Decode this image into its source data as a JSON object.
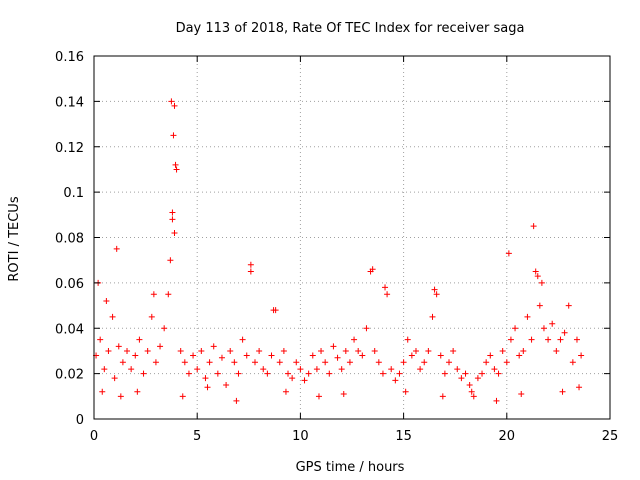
{
  "chart_data": {
    "type": "scatter",
    "title": "Day 113 of 2018, Rate Of TEC Index for receiver saga",
    "xlabel": "GPS time / hours",
    "ylabel": "ROTI / TECUs",
    "xlim": [
      0,
      25
    ],
    "ylim": [
      0,
      0.16
    ],
    "xticks": [
      "0",
      "5",
      "10",
      "15",
      "20",
      "25"
    ],
    "yticks": [
      "0",
      "0.02",
      "0.04",
      "0.06",
      "0.08",
      "0.1",
      "0.12",
      "0.14",
      "0.16"
    ],
    "grid": true,
    "marker": "+",
    "series": [
      {
        "name": "ROTI",
        "color": "#ff0000",
        "x": [
          0.1,
          0.3,
          0.5,
          0.7,
          0.9,
          1.0,
          1.2,
          1.4,
          1.6,
          1.8,
          2.0,
          2.2,
          2.4,
          2.6,
          2.8,
          3.0,
          3.2,
          3.4,
          3.6,
          3.7,
          3.8,
          3.9,
          4.0,
          4.2,
          4.4,
          4.6,
          4.8,
          5.0,
          5.2,
          5.4,
          5.6,
          5.8,
          6.0,
          6.2,
          6.4,
          6.6,
          6.8,
          7.0,
          7.2,
          7.4,
          7.6,
          7.8,
          8.0,
          8.2,
          8.4,
          8.6,
          8.8,
          9.0,
          9.2,
          9.4,
          9.6,
          9.8,
          10.0,
          10.2,
          10.4,
          10.6,
          10.8,
          11.0,
          11.2,
          11.4,
          11.6,
          11.8,
          12.0,
          12.2,
          12.4,
          12.6,
          12.8,
          13.0,
          13.2,
          13.4,
          13.6,
          13.8,
          14.0,
          14.2,
          14.4,
          14.6,
          14.8,
          15.0,
          15.2,
          15.4,
          15.6,
          15.8,
          16.0,
          16.2,
          16.4,
          16.6,
          16.8,
          17.0,
          17.2,
          17.4,
          17.6,
          17.8,
          18.0,
          18.2,
          18.4,
          18.6,
          18.8,
          19.0,
          19.2,
          19.4,
          19.6,
          19.8,
          20.0,
          20.2,
          20.4,
          20.6,
          20.8,
          21.0,
          21.2,
          21.4,
          21.6,
          21.8,
          22.0,
          22.2,
          22.4,
          22.6,
          22.8,
          23.0,
          23.2,
          23.4,
          23.6,
          0.2,
          0.6,
          1.1,
          2.9,
          3.75,
          3.85,
          3.95,
          3.8,
          3.9,
          7.6,
          8.7,
          13.5,
          14.1,
          16.5,
          20.1,
          21.3,
          21.5,
          21.7,
          0.4,
          1.3,
          2.1,
          4.3,
          5.5,
          6.9,
          9.3,
          10.9,
          12.1,
          15.1,
          16.9,
          18.3,
          19.5,
          20.7,
          22.7,
          23.5
        ],
        "y": [
          0.028,
          0.035,
          0.022,
          0.03,
          0.045,
          0.018,
          0.032,
          0.025,
          0.03,
          0.022,
          0.028,
          0.035,
          0.02,
          0.03,
          0.045,
          0.025,
          0.032,
          0.04,
          0.055,
          0.07,
          0.088,
          0.138,
          0.11,
          0.03,
          0.025,
          0.02,
          0.028,
          0.022,
          0.03,
          0.018,
          0.025,
          0.032,
          0.02,
          0.027,
          0.015,
          0.03,
          0.025,
          0.02,
          0.035,
          0.028,
          0.065,
          0.025,
          0.03,
          0.022,
          0.02,
          0.028,
          0.048,
          0.025,
          0.03,
          0.02,
          0.018,
          0.025,
          0.022,
          0.017,
          0.02,
          0.028,
          0.022,
          0.03,
          0.025,
          0.02,
          0.032,
          0.027,
          0.022,
          0.03,
          0.025,
          0.035,
          0.03,
          0.028,
          0.04,
          0.065,
          0.03,
          0.025,
          0.02,
          0.055,
          0.022,
          0.017,
          0.02,
          0.025,
          0.035,
          0.028,
          0.03,
          0.022,
          0.025,
          0.03,
          0.045,
          0.055,
          0.028,
          0.02,
          0.025,
          0.03,
          0.022,
          0.018,
          0.02,
          0.015,
          0.01,
          0.018,
          0.02,
          0.025,
          0.028,
          0.022,
          0.02,
          0.03,
          0.025,
          0.035,
          0.04,
          0.028,
          0.03,
          0.045,
          0.035,
          0.065,
          0.05,
          0.04,
          0.035,
          0.042,
          0.03,
          0.035,
          0.038,
          0.05,
          0.025,
          0.035,
          0.028,
          0.06,
          0.052,
          0.075,
          0.055,
          0.14,
          0.125,
          0.112,
          0.091,
          0.082,
          0.068,
          0.048,
          0.066,
          0.058,
          0.057,
          0.073,
          0.085,
          0.063,
          0.06,
          0.012,
          0.01,
          0.012,
          0.01,
          0.014,
          0.008,
          0.012,
          0.01,
          0.011,
          0.012,
          0.01,
          0.012,
          0.008,
          0.011,
          0.012,
          0.014
        ]
      }
    ]
  }
}
